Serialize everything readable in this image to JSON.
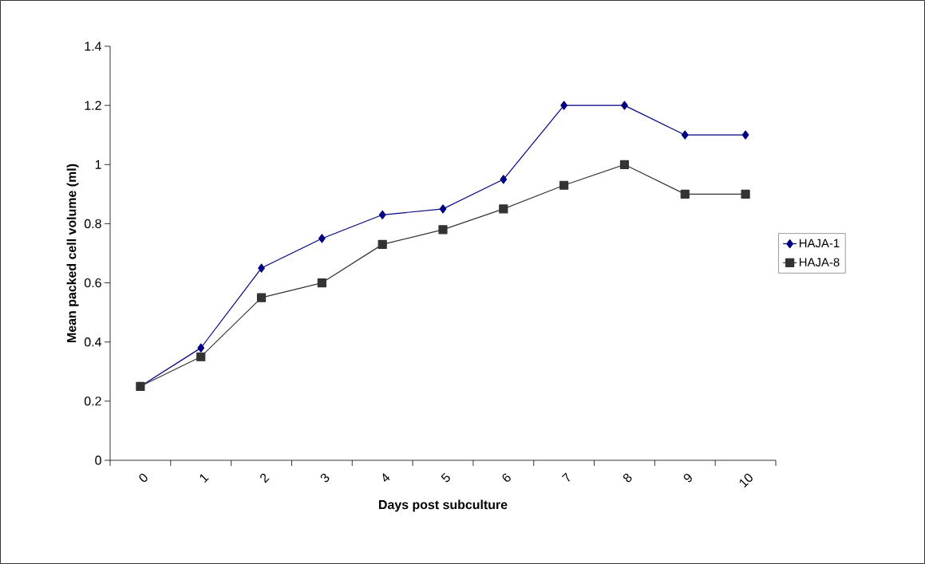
{
  "chart_data": {
    "type": "line",
    "xlabel": "Days post subculture",
    "ylabel": "Mean packed cell volume (ml)",
    "categories": [
      "0",
      "1",
      "2",
      "3",
      "4",
      "5",
      "6",
      "7",
      "8",
      "9",
      "10"
    ],
    "ylim": [
      0,
      1.4
    ],
    "yticks": [
      0,
      0.2,
      0.4,
      0.6,
      0.8,
      1,
      1.2,
      1.4
    ],
    "legend": "right",
    "grid": false,
    "series": [
      {
        "name": "HAJA-1",
        "color": "#000080",
        "marker": "diamond",
        "values": [
          0.25,
          0.38,
          0.65,
          0.75,
          0.83,
          0.85,
          0.95,
          1.2,
          1.2,
          1.1,
          1.1
        ]
      },
      {
        "name": "HAJA-8",
        "color": "#333333",
        "marker": "square",
        "values": [
          0.25,
          0.35,
          0.55,
          0.6,
          0.73,
          0.78,
          0.85,
          0.93,
          1.0,
          0.9,
          0.9
        ]
      }
    ]
  }
}
